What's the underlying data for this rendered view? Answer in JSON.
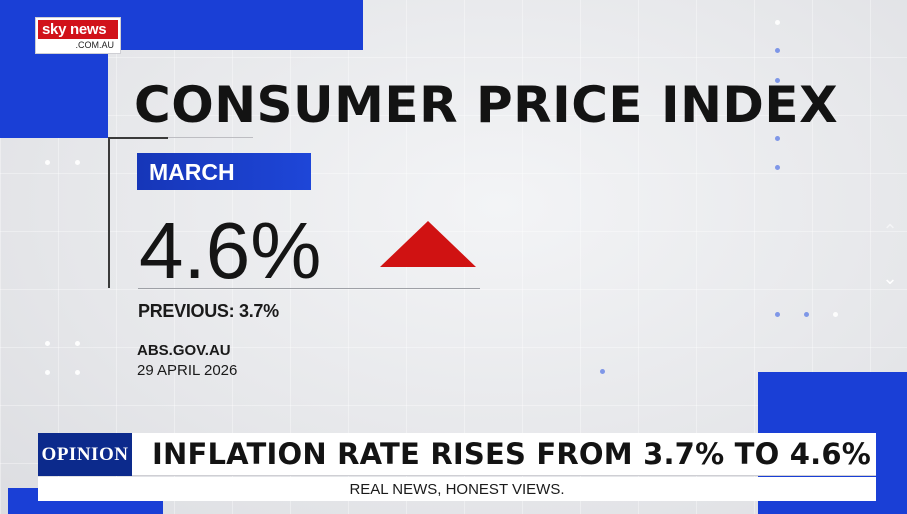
{
  "logo": {
    "brand": "sky news",
    "domain": ".COM.AU"
  },
  "graphic": {
    "title": "CONSUMER PRICE INDEX",
    "month": "MARCH",
    "value": "4.6%",
    "trend": "up",
    "previous": "PREVIOUS: 3.7%",
    "source": "ABS.GOV.AU",
    "date": "29 APRIL 2026"
  },
  "lower_third": {
    "badge": "OPINION",
    "headline": "INFLATION RATE RISES FROM 3.7% TO 4.6%",
    "tagline": "REAL NEWS, HONEST VIEWS."
  },
  "nav": {
    "up_icon": "chevron-up-icon",
    "down_icon": "chevron-down-icon"
  },
  "colors": {
    "accent_blue": "#1a3fd6",
    "arrow_red": "#d01212",
    "logo_red": "#d1121a",
    "badge_navy": "#0c2a8c"
  }
}
